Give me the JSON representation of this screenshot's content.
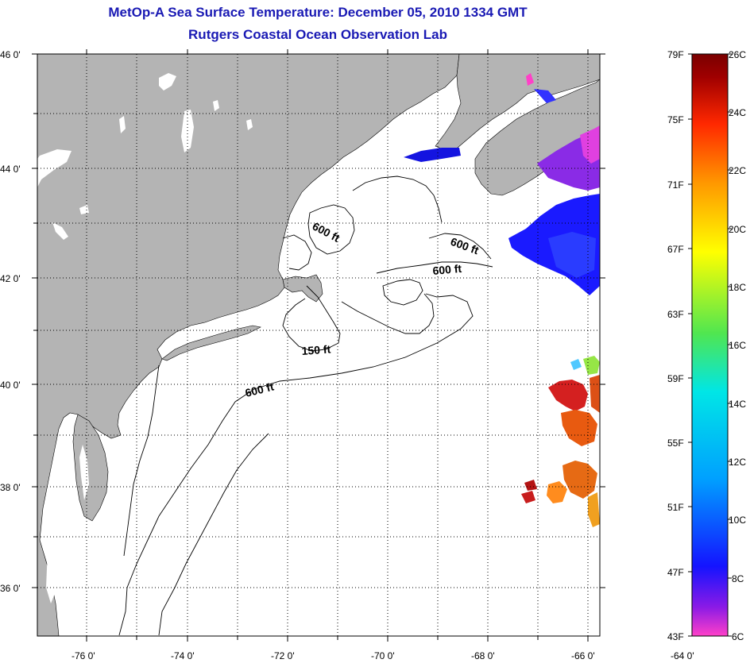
{
  "title": {
    "line1": "MetOp-A Sea Surface Temperature:  December 05, 2010 1334 GMT",
    "line2": "Rutgers Coastal Ocean Observation Lab"
  },
  "map": {
    "lat_labels": [
      "46 0'",
      "44 0'",
      "42 0'",
      "40 0'",
      "38 0'",
      "36 0'"
    ],
    "lon_labels": [
      "-76 0'",
      "-74 0'",
      "-72 0'",
      "-70 0'",
      "-68 0'",
      "-66 0'",
      "-64 0'"
    ],
    "contour_labels": [
      "600 ft",
      "600 ft",
      "600 ft",
      "150 ft",
      "600 ft"
    ],
    "colors": {
      "land": "#b4b4b4",
      "ocean": "#ffffff",
      "grid": "#000000"
    }
  },
  "colorbar": {
    "fahrenheit": [
      "79F",
      "75F",
      "71F",
      "67F",
      "63F",
      "59F",
      "55F",
      "51F",
      "47F",
      "43F"
    ],
    "celsius": [
      "26C",
      "24C",
      "22C",
      "20C",
      "18C",
      "16C",
      "14C",
      "12C",
      "10C",
      "8C",
      "6C"
    ],
    "gradient_stops": [
      "#ff40c8",
      "#8a1ae6",
      "#1414ff",
      "#00a0ff",
      "#00e6e6",
      "#50e650",
      "#ffff00",
      "#ff9600",
      "#ff2800",
      "#a00000",
      "#7a0000"
    ]
  }
}
